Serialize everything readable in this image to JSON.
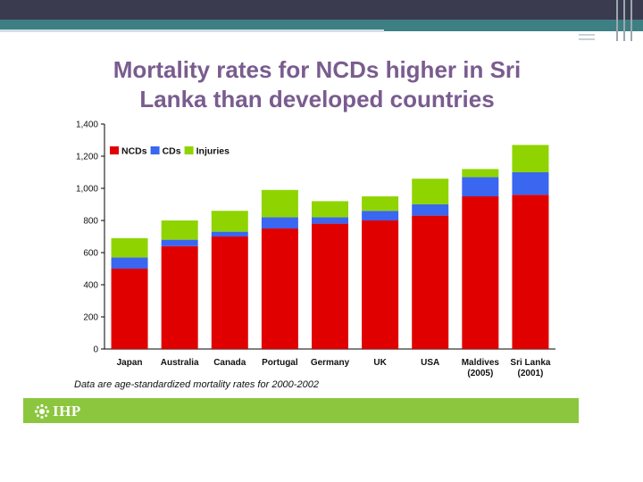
{
  "slide": {
    "title_line1": "Mortality rates for NCDs higher in Sri",
    "title_line2": "Lanka than developed countries",
    "caption": "Data are age-standardized mortality rates for 2000-2002",
    "logo_text": "IHP"
  },
  "colors": {
    "ncd": "#e00000",
    "cd": "#3a66f0",
    "injury": "#8fd400",
    "title": "#7a5c8f",
    "band": "#8cc63f"
  },
  "chart_data": {
    "type": "bar",
    "stacked": true,
    "title": "Mortality rates for NCDs higher in Sri Lanka than developed countries",
    "categories": [
      "Japan",
      "Australia",
      "Canada",
      "Portugal",
      "Germany",
      "UK",
      "USA",
      "Maldives\n(2005)",
      "Sri Lanka\n(2001)"
    ],
    "category_lines": [
      [
        "Japan"
      ],
      [
        "Australia"
      ],
      [
        "Canada"
      ],
      [
        "Portugal"
      ],
      [
        "Germany"
      ],
      [
        "UK"
      ],
      [
        "USA"
      ],
      [
        "Maldives",
        "(2005)"
      ],
      [
        "Sri Lanka",
        "(2001)"
      ]
    ],
    "series": [
      {
        "name": "NCDs",
        "color": "#e00000",
        "values": [
          500,
          640,
          700,
          750,
          780,
          800,
          830,
          950,
          960
        ]
      },
      {
        "name": "CDs",
        "color": "#3a66f0",
        "values": [
          70,
          40,
          30,
          70,
          40,
          60,
          70,
          120,
          140
        ]
      },
      {
        "name": "Injuries",
        "color": "#8fd400",
        "values": [
          120,
          120,
          130,
          170,
          100,
          90,
          160,
          50,
          170
        ]
      }
    ],
    "yticks": [
      0,
      200,
      400,
      600,
      800,
      1000,
      1200,
      1400
    ],
    "ytick_labels": [
      "0",
      "200",
      "400",
      "600",
      "800",
      "1,000",
      "1,200",
      "1,400"
    ],
    "ylim": [
      0,
      1400
    ],
    "xlabel": "",
    "ylabel": "",
    "legend_position": "top-left"
  }
}
